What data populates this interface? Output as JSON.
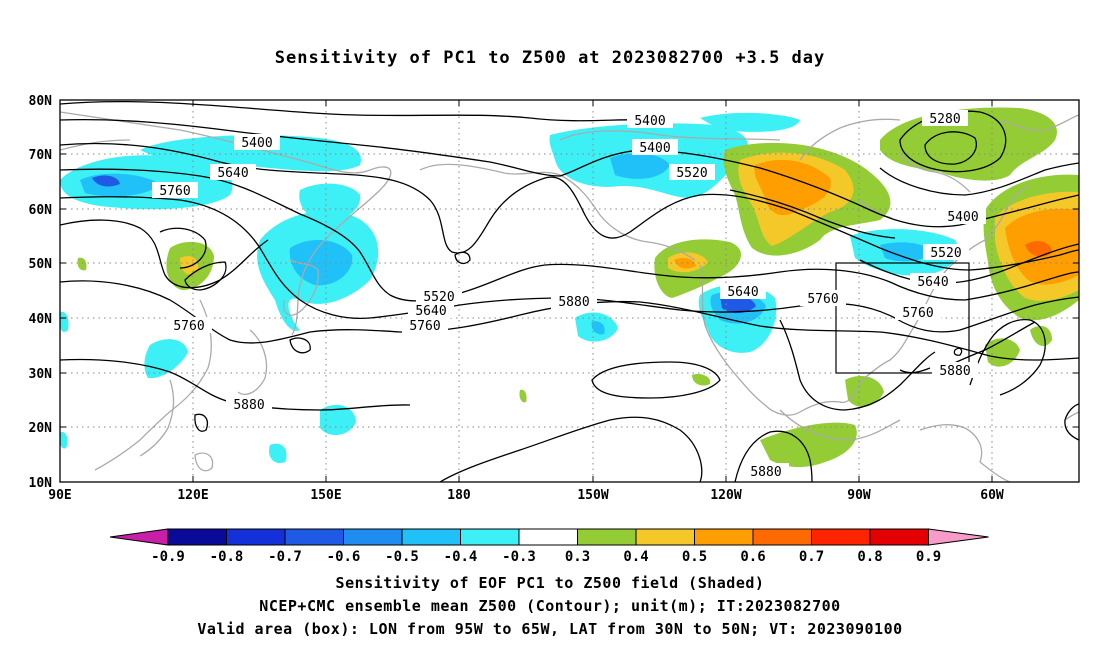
{
  "title": "Sensitivity of PC1 to Z500 at 2023082700 +3.5 day",
  "lat_ticks": [
    "80N",
    "70N",
    "60N",
    "50N",
    "40N",
    "30N",
    "20N",
    "10N"
  ],
  "lon_ticks": [
    "90E",
    "120E",
    "150E",
    "180",
    "150W",
    "120W",
    "90W",
    "60W"
  ],
  "contour_labels": [
    "5400",
    "5400",
    "5640",
    "5760",
    "5760",
    "5520",
    "5640",
    "5760",
    "5880",
    "5880",
    "5400",
    "5520",
    "5640",
    "5760",
    "5880",
    "5880",
    "5280",
    "5400",
    "5520",
    "5640",
    "5760",
    "5880"
  ],
  "colorbar": {
    "labels": [
      "-0.9",
      "-0.8",
      "-0.7",
      "-0.6",
      "-0.5",
      "-0.4",
      "-0.3",
      "0.3",
      "0.4",
      "0.5",
      "0.6",
      "0.7",
      "0.8",
      "0.9"
    ],
    "colors": [
      "#c81ea8",
      "#0a0a9a",
      "#1430d8",
      "#1e5ae6",
      "#1f8cf0",
      "#20c0f8",
      "#3df0f5",
      "#ffffff",
      "#94cc36",
      "#f5c82a",
      "#ff9e00",
      "#ff6a00",
      "#ff2400",
      "#e40000",
      "#f79cc8"
    ]
  },
  "captions": [
    "Sensitivity of EOF PC1 to Z500 field (Shaded)",
    "NCEP+CMC ensemble mean Z500 (Contour); unit(m); IT:2023082700",
    "Valid area (box): LON from 95W to 65W, LAT from 30N to 50N; VT: 2023090100"
  ]
}
